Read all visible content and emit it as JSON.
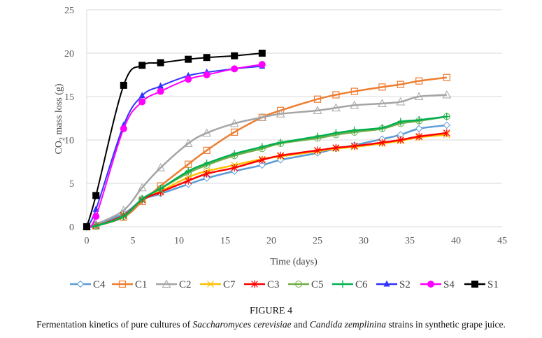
{
  "chart_data": {
    "type": "line",
    "title": "",
    "xlabel": "Time (days)",
    "ylabel_main": "CO",
    "ylabel_sub": "2",
    "ylabel_rest": " mass loss (g)",
    "ylabel": "CO2 mass loss (g)",
    "xlim": [
      0,
      45
    ],
    "ylim": [
      0,
      25
    ],
    "xticks": [
      0,
      5,
      10,
      15,
      20,
      25,
      30,
      35,
      40,
      45
    ],
    "yticks": [
      0,
      5,
      10,
      15,
      20,
      25
    ],
    "grid": "horizontal",
    "legend_position": "bottom",
    "series": [
      {
        "name": "C4",
        "color": "#5b9bd5",
        "marker": "diamond",
        "x": [
          0,
          1,
          4,
          6,
          8,
          11,
          13,
          16,
          19,
          21,
          25,
          27,
          29,
          32,
          34,
          36,
          39
        ],
        "y": [
          0,
          0.3,
          1.5,
          3.1,
          3.8,
          4.9,
          5.6,
          6.4,
          7.1,
          7.7,
          8.5,
          9.0,
          9.4,
          10.1,
          10.6,
          11.3,
          11.7
        ]
      },
      {
        "name": "C1",
        "color": "#ed7d31",
        "marker": "square",
        "x": [
          0,
          1,
          4,
          6,
          8,
          11,
          13,
          16,
          19,
          21,
          25,
          27,
          29,
          32,
          34,
          36,
          39
        ],
        "y": [
          0,
          0.1,
          1.1,
          2.9,
          4.7,
          7.2,
          8.8,
          10.9,
          12.6,
          13.4,
          14.7,
          15.2,
          15.6,
          16.1,
          16.4,
          16.8,
          17.2
        ]
      },
      {
        "name": "C2",
        "color": "#a5a5a5",
        "marker": "triangle-open",
        "x": [
          0,
          1,
          4,
          6,
          8,
          11,
          13,
          16,
          19,
          21,
          25,
          27,
          29,
          32,
          34,
          36,
          39
        ],
        "y": [
          0,
          0.3,
          1.9,
          4.5,
          6.8,
          9.6,
          10.8,
          11.9,
          12.6,
          13.0,
          13.4,
          13.7,
          14.0,
          14.2,
          14.4,
          15.0,
          15.2
        ]
      },
      {
        "name": "C7",
        "color": "#ffc000",
        "marker": "x",
        "x": [
          0,
          1,
          4,
          6,
          8,
          11,
          13,
          16,
          19,
          21,
          25,
          27,
          29,
          32,
          34,
          36,
          39
        ],
        "y": [
          0,
          0.1,
          1.3,
          3.1,
          4.1,
          5.7,
          6.4,
          7.1,
          7.8,
          8.1,
          8.7,
          9.0,
          9.2,
          9.6,
          9.9,
          10.3,
          10.6
        ]
      },
      {
        "name": "C3",
        "color": "#ff0000",
        "marker": "star",
        "x": [
          0,
          1,
          4,
          6,
          8,
          11,
          13,
          16,
          19,
          21,
          25,
          27,
          29,
          32,
          34,
          36,
          39
        ],
        "y": [
          0,
          0.1,
          1.3,
          3.1,
          4.0,
          5.3,
          6.1,
          6.8,
          7.7,
          8.2,
          8.8,
          9.1,
          9.3,
          9.7,
          10.0,
          10.4,
          10.8
        ]
      },
      {
        "name": "C5",
        "color": "#70ad47",
        "marker": "circle-open",
        "x": [
          0,
          1,
          4,
          6,
          8,
          11,
          13,
          16,
          19,
          21,
          25,
          27,
          29,
          32,
          34,
          36,
          39
        ],
        "y": [
          0,
          0.1,
          1.2,
          3.2,
          4.4,
          6.2,
          7.1,
          8.2,
          9.0,
          9.6,
          10.2,
          10.6,
          10.9,
          11.3,
          11.9,
          12.2,
          12.7
        ]
      },
      {
        "name": "C6",
        "color": "#00b050",
        "marker": "plus",
        "x": [
          0,
          1,
          4,
          6,
          8,
          11,
          13,
          16,
          19,
          21,
          25,
          27,
          29,
          32,
          34,
          36,
          39
        ],
        "y": [
          0,
          0.1,
          1.2,
          3.2,
          4.4,
          6.4,
          7.3,
          8.4,
          9.2,
          9.7,
          10.4,
          10.8,
          11.1,
          11.4,
          12.1,
          12.3,
          12.7
        ]
      },
      {
        "name": "S2",
        "color": "#3333ff",
        "marker": "triangle",
        "x": [
          0,
          1,
          4,
          6,
          8,
          11,
          13,
          16,
          19
        ],
        "y": [
          0,
          2.0,
          11.7,
          15.1,
          16.2,
          17.4,
          17.8,
          18.2,
          18.5
        ]
      },
      {
        "name": "S4",
        "color": "#ff00ff",
        "marker": "circle",
        "x": [
          0,
          1,
          4,
          6,
          8,
          11,
          13,
          16,
          19
        ],
        "y": [
          0,
          1.2,
          11.3,
          14.4,
          15.6,
          17.0,
          17.5,
          18.2,
          18.7
        ]
      },
      {
        "name": "S1",
        "color": "#000000",
        "marker": "square-filled",
        "x": [
          0,
          1,
          4,
          6,
          8,
          11,
          13,
          16,
          19
        ],
        "y": [
          0,
          3.6,
          16.3,
          18.6,
          18.9,
          19.3,
          19.5,
          19.7,
          20.0
        ]
      }
    ]
  },
  "figure": {
    "title": "FIGURE 4",
    "caption_parts": [
      {
        "text": "Fermentation kinetics of pure cultures of ",
        "italic": false
      },
      {
        "text": "Saccharomyces cerevisiae",
        "italic": true
      },
      {
        "text": " and ",
        "italic": false
      },
      {
        "text": "Candida zemplinina",
        "italic": true
      },
      {
        "text": " strains in synthetic grape juice.",
        "italic": false
      }
    ]
  }
}
